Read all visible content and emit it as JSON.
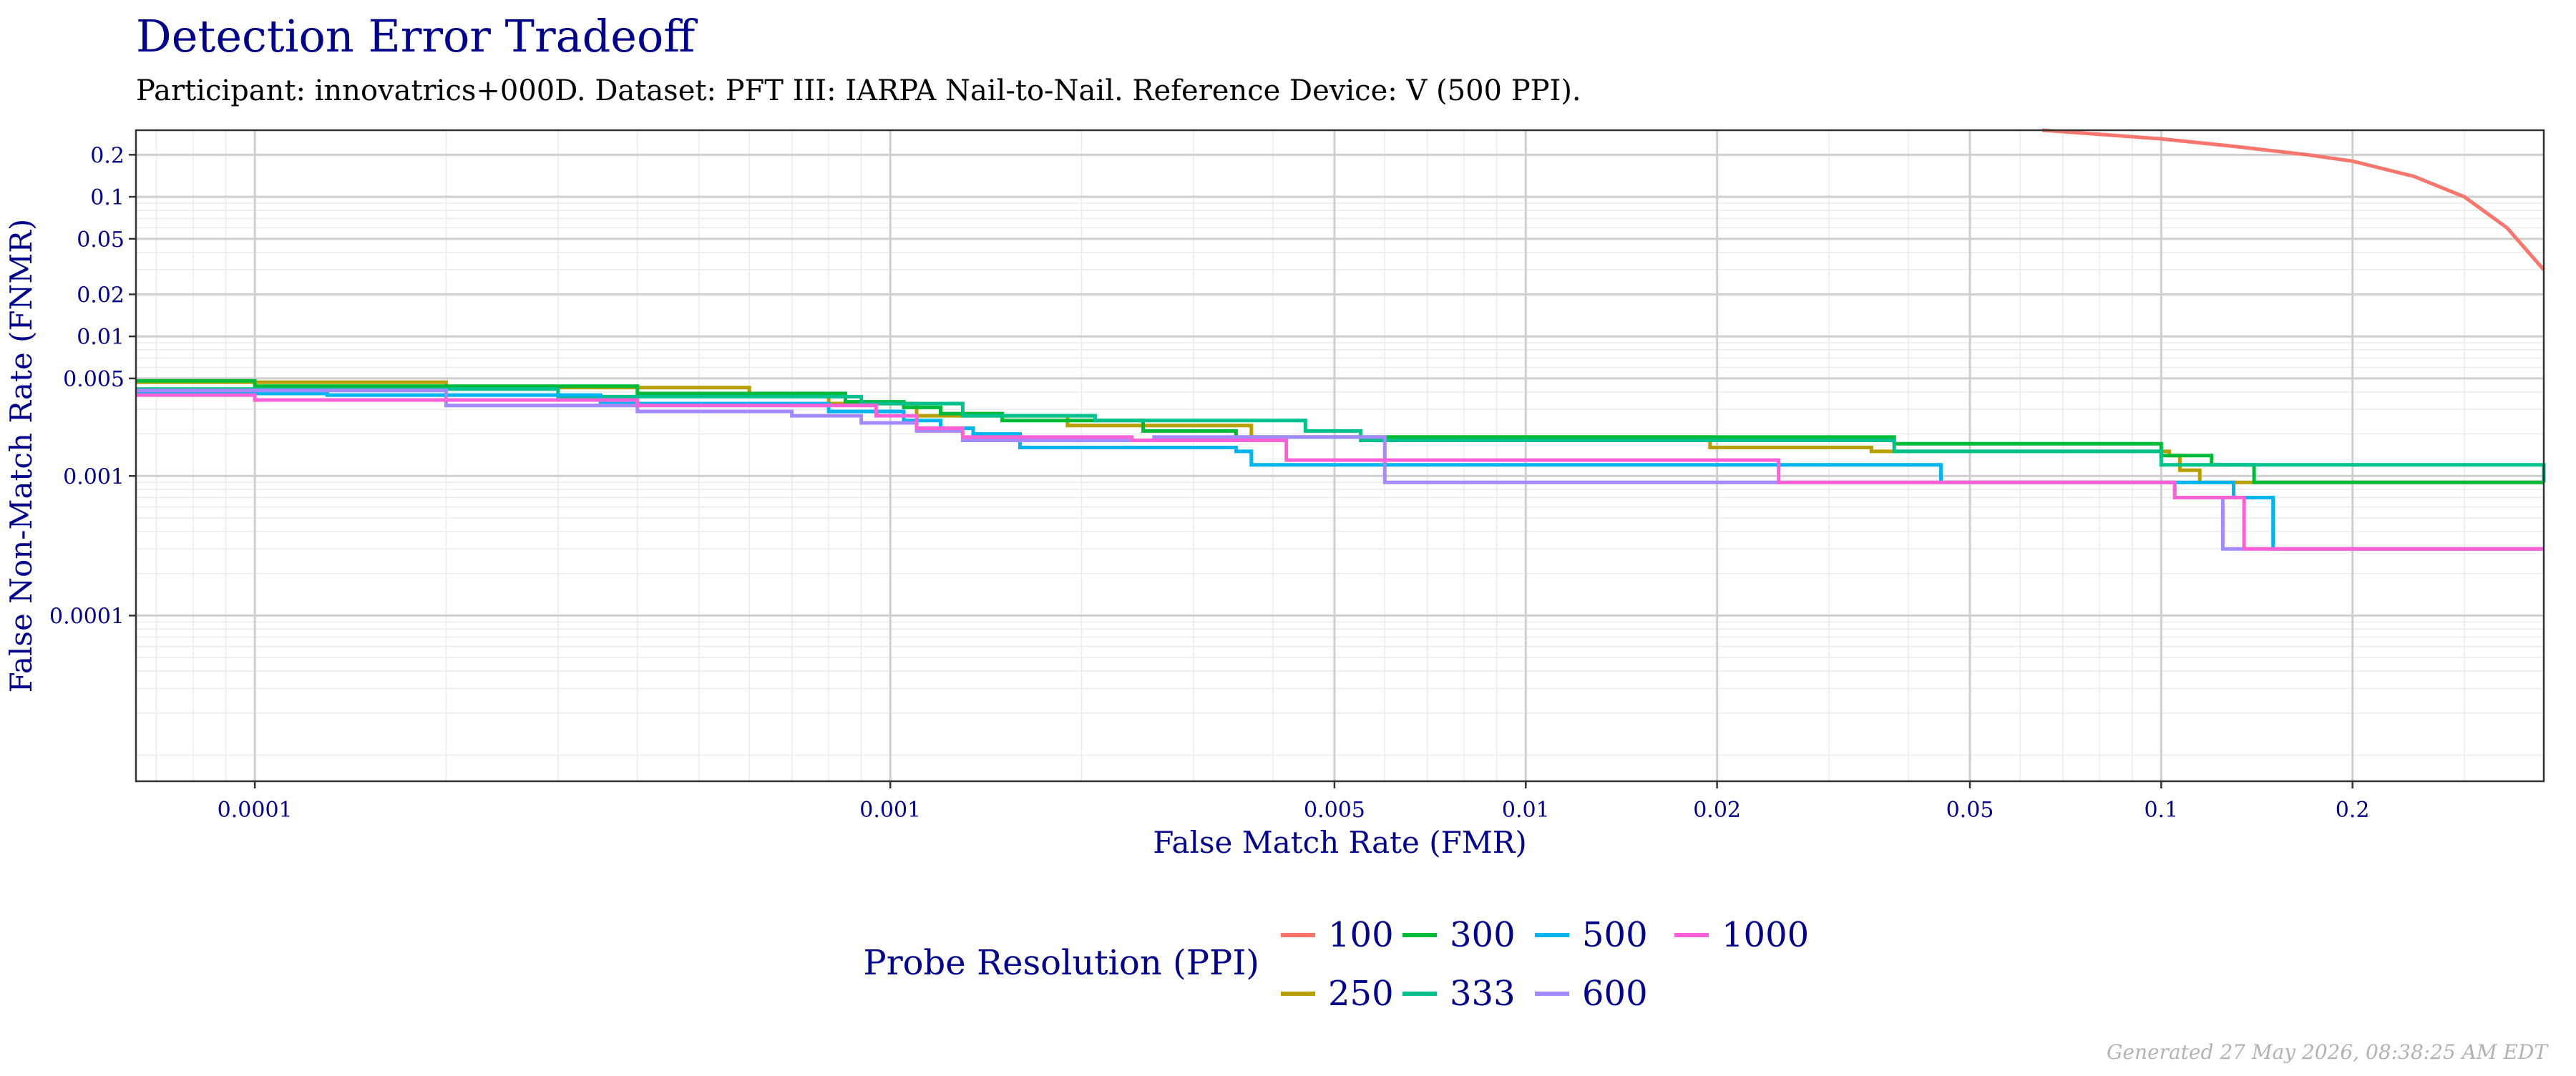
{
  "chart_data": {
    "type": "line",
    "title": "Detection Error Tradeoff",
    "subtitle": "Participant: innovatrics+000D. Dataset: PFT III: IARPA Nail-to-Nail. Reference Device: V (500 PPI).",
    "xlabel": "False Match Rate (FMR)",
    "ylabel": "False Non-Match Rate (FNMR)",
    "x_scale": "log",
    "y_scale": "log",
    "xlim": [
      6.5e-05,
      0.4
    ],
    "ylim": [
      6.5e-06,
      0.3
    ],
    "x_ticks": [
      {
        "value": 0.0001,
        "label": "0.0001"
      },
      {
        "value": 0.001,
        "label": "0.001"
      },
      {
        "value": 0.005,
        "label": "0.005"
      },
      {
        "value": 0.01,
        "label": "0.01"
      },
      {
        "value": 0.02,
        "label": "0.02"
      },
      {
        "value": 0.05,
        "label": "0.05"
      },
      {
        "value": 0.1,
        "label": "0.1"
      },
      {
        "value": 0.2,
        "label": "0.2"
      }
    ],
    "y_ticks": [
      {
        "value": 0.0001,
        "label": "0.0001"
      },
      {
        "value": 0.001,
        "label": "0.001"
      },
      {
        "value": 0.005,
        "label": "0.005"
      },
      {
        "value": 0.01,
        "label": "0.01"
      },
      {
        "value": 0.02,
        "label": "0.02"
      },
      {
        "value": 0.05,
        "label": "0.05"
      },
      {
        "value": 0.1,
        "label": "0.1"
      },
      {
        "value": 0.2,
        "label": "0.2"
      }
    ],
    "grid": true,
    "legend_title": "Probe Resolution (PPI)",
    "legend_position": "bottom",
    "series": [
      {
        "name": "100",
        "color": "#F8766D",
        "step": false,
        "points": [
          [
            0.065,
            0.3
          ],
          [
            0.08,
            0.28
          ],
          [
            0.1,
            0.26
          ],
          [
            0.13,
            0.23
          ],
          [
            0.17,
            0.2
          ],
          [
            0.2,
            0.18
          ],
          [
            0.25,
            0.14
          ],
          [
            0.3,
            0.1
          ],
          [
            0.35,
            0.06
          ],
          [
            0.4,
            0.03
          ]
        ]
      },
      {
        "name": "250",
        "color": "#B79F00",
        "step": true,
        "points": [
          [
            6.5e-05,
            0.0047
          ],
          [
            0.0002,
            0.0043
          ],
          [
            0.0006,
            0.0038
          ],
          [
            0.0008,
            0.0033
          ],
          [
            0.0011,
            0.0027
          ],
          [
            0.0019,
            0.0023
          ],
          [
            0.0037,
            0.0019
          ],
          [
            0.0195,
            0.0016
          ],
          [
            0.035,
            0.0015
          ],
          [
            0.103,
            0.0014
          ],
          [
            0.107,
            0.0011
          ],
          [
            0.115,
            0.0009
          ],
          [
            0.4,
            0.0009
          ]
        ]
      },
      {
        "name": "300",
        "color": "#00BA38",
        "step": true,
        "points": [
          [
            6.5e-05,
            0.0048
          ],
          [
            0.0001,
            0.0044
          ],
          [
            0.0004,
            0.0039
          ],
          [
            0.00085,
            0.0034
          ],
          [
            0.00105,
            0.0031
          ],
          [
            0.0012,
            0.0028
          ],
          [
            0.0015,
            0.0025
          ],
          [
            0.0025,
            0.0021
          ],
          [
            0.0035,
            0.0019
          ],
          [
            0.038,
            0.0017
          ],
          [
            0.1,
            0.0014
          ],
          [
            0.12,
            0.0012
          ],
          [
            0.14,
            0.0011
          ],
          [
            0.14,
            0.0009
          ],
          [
            0.4,
            0.0009
          ]
        ]
      },
      {
        "name": "333",
        "color": "#00C08B",
        "step": true,
        "points": [
          [
            6.5e-05,
            0.0042
          ],
          [
            0.0003,
            0.0037
          ],
          [
            0.0009,
            0.0033
          ],
          [
            0.0013,
            0.0027
          ],
          [
            0.0021,
            0.0025
          ],
          [
            0.0045,
            0.0021
          ],
          [
            0.0055,
            0.0018
          ],
          [
            0.038,
            0.0015
          ],
          [
            0.1,
            0.0012
          ],
          [
            0.4,
            0.0009
          ]
        ]
      },
      {
        "name": "500",
        "color": "#00B4EF",
        "step": true,
        "points": [
          [
            6.5e-05,
            0.0039
          ],
          [
            0.00013,
            0.0038
          ],
          [
            0.00035,
            0.0033
          ],
          [
            0.0008,
            0.0029
          ],
          [
            0.00105,
            0.0025
          ],
          [
            0.0012,
            0.0022
          ],
          [
            0.00135,
            0.002
          ],
          [
            0.0016,
            0.0016
          ],
          [
            0.0035,
            0.0015
          ],
          [
            0.0037,
            0.0012
          ],
          [
            0.045,
            0.0011
          ],
          [
            0.045,
            0.0009
          ],
          [
            0.13,
            0.0007
          ],
          [
            0.15,
            0.0003
          ],
          [
            0.4,
            0.0003
          ]
        ]
      },
      {
        "name": "600",
        "color": "#A58AFF",
        "step": true,
        "points": [
          [
            6.5e-05,
            0.0041
          ],
          [
            0.0002,
            0.0032
          ],
          [
            0.0004,
            0.0029
          ],
          [
            0.0007,
            0.0027
          ],
          [
            0.0009,
            0.0024
          ],
          [
            0.0011,
            0.0021
          ],
          [
            0.0013,
            0.0018
          ],
          [
            0.0026,
            0.0019
          ],
          [
            0.006,
            0.0011
          ],
          [
            0.006,
            0.0009
          ],
          [
            0.105,
            0.0009
          ],
          [
            0.105,
            0.0007
          ],
          [
            0.125,
            0.0003
          ],
          [
            0.4,
            0.0003
          ]
        ]
      },
      {
        "name": "1000",
        "color": "#FB61D7",
        "step": true,
        "points": [
          [
            6.5e-05,
            0.0038
          ],
          [
            0.0001,
            0.0035
          ],
          [
            0.0004,
            0.0032
          ],
          [
            0.00095,
            0.0027
          ],
          [
            0.0011,
            0.0022
          ],
          [
            0.0013,
            0.0019
          ],
          [
            0.0024,
            0.0018
          ],
          [
            0.0042,
            0.0013
          ],
          [
            0.025,
            0.0011
          ],
          [
            0.025,
            0.0009
          ],
          [
            0.105,
            0.0009
          ],
          [
            0.105,
            0.0007
          ],
          [
            0.135,
            0.0003
          ],
          [
            0.4,
            0.0003
          ]
        ]
      }
    ]
  },
  "footer": {
    "generated": "Generated 27 May 2026, 08:38:25 AM EDT"
  }
}
